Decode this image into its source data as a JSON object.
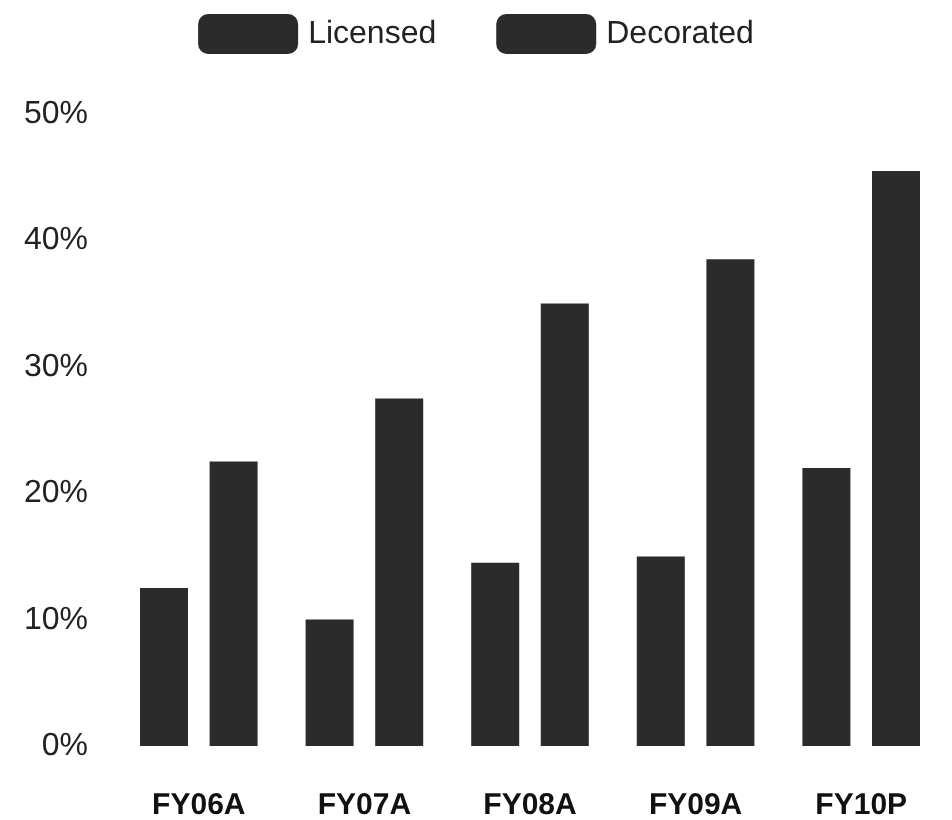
{
  "chart_data": {
    "type": "bar",
    "categories": [
      "FY06A",
      "FY07A",
      "FY08A",
      "FY09A",
      "FY10P"
    ],
    "series": [
      {
        "name": "Licensed",
        "color": "#2b2b2b",
        "values": [
          12.5,
          10,
          14.5,
          15,
          22
        ]
      },
      {
        "name": "Decorated",
        "color": "#2b2b2b",
        "values": [
          22.5,
          27.5,
          35,
          38.5,
          45.5
        ]
      }
    ],
    "ylim": [
      0,
      50
    ],
    "yticks": [
      {
        "value": 0,
        "label": "0%"
      },
      {
        "value": 10,
        "label": "10%"
      },
      {
        "value": 20,
        "label": "20%"
      },
      {
        "value": 30,
        "label": "30%"
      },
      {
        "value": 40,
        "label": "40%"
      },
      {
        "value": 50,
        "label": "50%"
      }
    ],
    "grid": false,
    "legend": "top"
  }
}
